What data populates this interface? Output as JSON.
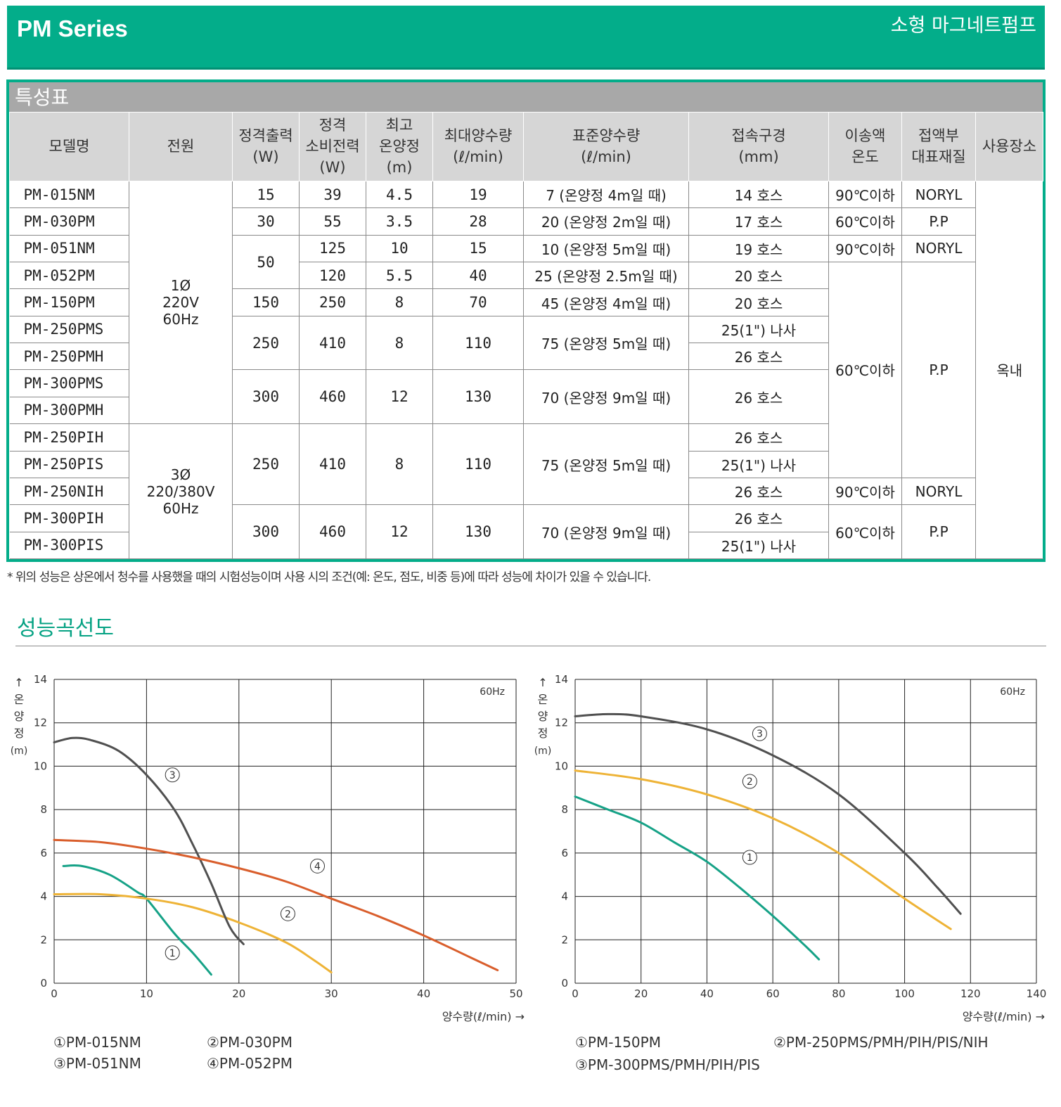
{
  "header": {
    "title": "PM Series",
    "subtitle": "소형 마그네트펌프"
  },
  "spec_table": {
    "caption": "특성표",
    "headers": [
      "모델명",
      "전원",
      "정격출력\n(W)",
      "정격\n소비전력\n(W)",
      "최고\n온양정\n(m)",
      "최대양수량\n(ℓ/min)",
      "표준양수량\n(ℓ/min)",
      "접속구경\n(mm)",
      "이송액\n온도",
      "접액부\n대표재질",
      "사용장소"
    ],
    "models": [
      "PM-015NM",
      "PM-030PM",
      "PM-051NM",
      "PM-052PM",
      "PM-150PM",
      "PM-250PMS",
      "PM-250PMH",
      "PM-300PMS",
      "PM-300PMH",
      "PM-250PIH",
      "PM-250PIS",
      "PM-250NIH",
      "PM-300PIH",
      "PM-300PIS"
    ],
    "power": [
      "1Ø\n220V\n60Hz",
      "3Ø\n220/380V\n60Hz"
    ],
    "output_w": [
      "15",
      "30",
      "50",
      "150",
      "250",
      "300",
      "250",
      "300"
    ],
    "consumption_w": [
      "39",
      "55",
      "125",
      "120",
      "250",
      "410",
      "460",
      "410",
      "460"
    ],
    "max_head_m": [
      "4.5",
      "3.5",
      "10",
      "5.5",
      "8",
      "8",
      "12",
      "8",
      "12"
    ],
    "max_flow": [
      "19",
      "28",
      "15",
      "40",
      "70",
      "110",
      "130",
      "110",
      "130"
    ],
    "std_flow": [
      "7 (온양정 4m일 때)",
      "20 (온양정 2m일 때)",
      "10 (온양정 5m일 때)",
      "25 (온양정 2.5m일 때)",
      "45 (온양정 4m일 때)",
      "75 (온양정 5m일 때)",
      "70 (온양정 9m일 때)",
      "75 (온양정 5m일 때)",
      "70 (온양정 9m일 때)"
    ],
    "bore": [
      "14 호스",
      "17 호스",
      "19 호스",
      "20 호스",
      "20 호스",
      "25(1\") 나사",
      "26 호스",
      "26 호스",
      "26 호스",
      "25(1\") 나사",
      "26 호스",
      "26 호스",
      "25(1\") 나사"
    ],
    "temp": [
      "90℃이하",
      "60℃이하",
      "90℃이하",
      "60℃이하",
      "90℃이하",
      "60℃이하"
    ],
    "material": [
      "NORYL",
      "P.P",
      "NORYL",
      "P.P",
      "NORYL",
      "P.P"
    ],
    "location": "옥내"
  },
  "note": "* 위의 성능은 상온에서 청수를 사용했을 때의 시험성능이며 사용 시의 조건(예: 온도, 점도, 비중 등)에 따라 성능에 차이가 있을 수 있습니다.",
  "section_title": "성능곡선도",
  "chart_data": [
    {
      "type": "line",
      "freq_label": "60Hz",
      "ylabel": "↑ 온 양 정 (m)",
      "xlabel": "양수량(ℓ/min) →",
      "xlim": [
        0,
        50
      ],
      "ylim": [
        0,
        14
      ],
      "xticks": [
        0,
        10,
        20,
        30,
        40,
        50
      ],
      "yticks": [
        0,
        2,
        4,
        6,
        8,
        10,
        12,
        14
      ],
      "grid": true,
      "colors": {
        "1": "#16a287",
        "2": "#eeb336",
        "3": "#505050",
        "4": "#d95e2c"
      },
      "series": [
        {
          "name": "①PM-015NM",
          "marker": "①",
          "label_at": [
            12.8,
            1.4
          ],
          "x": [
            1,
            3,
            6,
            9,
            10,
            13,
            15,
            17
          ],
          "y": [
            5.4,
            5.4,
            5.0,
            4.2,
            3.9,
            2.3,
            1.4,
            0.4
          ]
        },
        {
          "name": "②PM-030PM",
          "marker": "②",
          "label_at": [
            25.3,
            3.2
          ],
          "x": [
            0,
            5,
            10,
            15,
            20,
            25,
            28,
            30
          ],
          "y": [
            4.1,
            4.1,
            3.9,
            3.5,
            2.8,
            1.9,
            1.1,
            0.5
          ]
        },
        {
          "name": "③PM-051NM",
          "marker": "③",
          "label_at": [
            12.8,
            9.6
          ],
          "x": [
            0,
            2,
            4,
            7,
            10,
            13,
            15,
            17,
            19,
            20.5
          ],
          "y": [
            11.1,
            11.3,
            11.2,
            10.7,
            9.6,
            8.0,
            6.4,
            4.6,
            2.6,
            1.8
          ]
        },
        {
          "name": "④PM-052PM",
          "marker": "④",
          "label_at": [
            28.5,
            5.4
          ],
          "x": [
            0,
            5,
            10,
            15,
            20,
            25,
            30,
            35,
            40,
            45,
            48
          ],
          "y": [
            6.6,
            6.5,
            6.2,
            5.8,
            5.3,
            4.7,
            3.9,
            3.1,
            2.2,
            1.2,
            0.6
          ]
        }
      ],
      "legend": [
        "①PM-015NM",
        "②PM-030PM",
        "③PM-051NM",
        "④PM-052PM"
      ]
    },
    {
      "type": "line",
      "freq_label": "60Hz",
      "ylabel": "↑ 온 양 정 (m)",
      "xlabel": "양수량(ℓ/min) →",
      "xlim": [
        0,
        140
      ],
      "ylim": [
        0,
        14
      ],
      "xticks": [
        0,
        20,
        40,
        60,
        80,
        100,
        120,
        140
      ],
      "yticks": [
        0,
        2,
        4,
        6,
        8,
        10,
        12,
        14
      ],
      "grid": true,
      "colors": {
        "1": "#16a287",
        "2": "#eeb336",
        "3": "#505050"
      },
      "series": [
        {
          "name": "①PM-150PM",
          "marker": "①",
          "label_at": [
            53,
            5.8
          ],
          "x": [
            0,
            10,
            20,
            30,
            40,
            50,
            60,
            70,
            74
          ],
          "y": [
            8.6,
            8.0,
            7.4,
            6.5,
            5.6,
            4.4,
            3.1,
            1.7,
            1.1
          ]
        },
        {
          "name": "②PM-250PMS/PMH/PIH/PIS/NIH",
          "marker": "②",
          "label_at": [
            53,
            9.3
          ],
          "x": [
            0,
            20,
            40,
            60,
            80,
            100,
            114
          ],
          "y": [
            9.8,
            9.4,
            8.7,
            7.6,
            6.0,
            3.9,
            2.5
          ]
        },
        {
          "name": "③PM-300PMS/PMH/PIH/PIS",
          "marker": "③",
          "label_at": [
            56,
            11.5
          ],
          "x": [
            0,
            10,
            20,
            40,
            60,
            80,
            100,
            110,
            117
          ],
          "y": [
            12.3,
            12.4,
            12.3,
            11.7,
            10.5,
            8.7,
            6.0,
            4.4,
            3.2
          ]
        }
      ],
      "legend": [
        "①PM-150PM",
        "②PM-250PMS/PMH/PIH/PIS/NIH",
        "③PM-300PMS/PMH/PIH/PIS"
      ]
    }
  ]
}
